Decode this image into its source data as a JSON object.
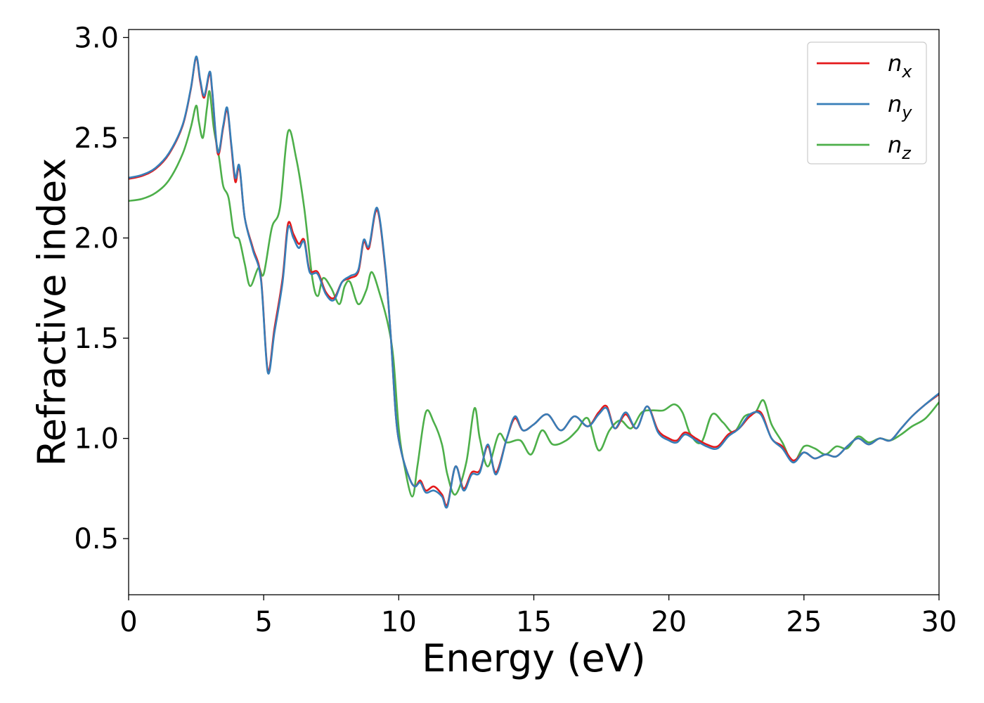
{
  "chart_data": {
    "type": "line",
    "title": "",
    "xlabel": "Energy (eV)",
    "ylabel": "Refractive index",
    "xlim": [
      0,
      30
    ],
    "ylim": [
      0.22,
      3.04
    ],
    "xticks": [
      0,
      5,
      10,
      15,
      20,
      25,
      30
    ],
    "xtick_labels": [
      "0",
      "5",
      "10",
      "15",
      "20",
      "25",
      "30"
    ],
    "yticks": [
      0.5,
      1.0,
      1.5,
      2.0,
      2.5,
      3.0
    ],
    "ytick_labels": [
      "0.5",
      "1.0",
      "1.5",
      "2.0",
      "2.5",
      "3.0"
    ],
    "grid": false,
    "legend_position": "top-right",
    "series": [
      {
        "name": "n",
        "subscript": "x",
        "color": "#e41a1c",
        "points": [
          [
            0.0,
            2.295
          ],
          [
            0.5,
            2.31
          ],
          [
            1.0,
            2.345
          ],
          [
            1.5,
            2.42
          ],
          [
            2.0,
            2.56
          ],
          [
            2.3,
            2.74
          ],
          [
            2.5,
            2.9
          ],
          [
            2.65,
            2.78
          ],
          [
            2.8,
            2.7
          ],
          [
            3.0,
            2.82
          ],
          [
            3.1,
            2.72
          ],
          [
            3.3,
            2.42
          ],
          [
            3.5,
            2.55
          ],
          [
            3.65,
            2.64
          ],
          [
            3.8,
            2.46
          ],
          [
            3.95,
            2.28
          ],
          [
            4.1,
            2.35
          ],
          [
            4.3,
            2.1
          ],
          [
            4.6,
            1.95
          ],
          [
            4.9,
            1.8
          ],
          [
            5.15,
            1.34
          ],
          [
            5.4,
            1.55
          ],
          [
            5.7,
            1.8
          ],
          [
            5.9,
            2.07
          ],
          [
            6.1,
            2.02
          ],
          [
            6.3,
            1.97
          ],
          [
            6.5,
            1.99
          ],
          [
            6.7,
            1.84
          ],
          [
            7.0,
            1.83
          ],
          [
            7.3,
            1.73
          ],
          [
            7.6,
            1.7
          ],
          [
            7.9,
            1.78
          ],
          [
            8.2,
            1.8
          ],
          [
            8.5,
            1.83
          ],
          [
            8.7,
            1.98
          ],
          [
            8.9,
            1.95
          ],
          [
            9.2,
            2.14
          ],
          [
            9.5,
            1.85
          ],
          [
            9.7,
            1.52
          ],
          [
            9.9,
            1.1
          ],
          [
            10.1,
            0.93
          ],
          [
            10.4,
            0.8
          ],
          [
            10.6,
            0.76
          ],
          [
            10.8,
            0.79
          ],
          [
            11.0,
            0.74
          ],
          [
            11.3,
            0.76
          ],
          [
            11.6,
            0.72
          ],
          [
            11.8,
            0.67
          ],
          [
            12.1,
            0.86
          ],
          [
            12.4,
            0.75
          ],
          [
            12.7,
            0.83
          ],
          [
            13.0,
            0.84
          ],
          [
            13.3,
            0.96
          ],
          [
            13.6,
            0.83
          ],
          [
            14.0,
            1.0
          ],
          [
            14.3,
            1.1
          ],
          [
            14.6,
            1.04
          ],
          [
            15.0,
            1.07
          ],
          [
            15.5,
            1.12
          ],
          [
            16.0,
            1.04
          ],
          [
            16.5,
            1.11
          ],
          [
            17.0,
            1.06
          ],
          [
            17.4,
            1.13
          ],
          [
            17.7,
            1.16
          ],
          [
            18.0,
            1.05
          ],
          [
            18.4,
            1.12
          ],
          [
            18.8,
            1.05
          ],
          [
            19.2,
            1.16
          ],
          [
            19.6,
            1.04
          ],
          [
            20.0,
            1.0
          ],
          [
            20.3,
            0.99
          ],
          [
            20.6,
            1.03
          ],
          [
            21.0,
            1.0
          ],
          [
            21.4,
            0.97
          ],
          [
            21.8,
            0.96
          ],
          [
            22.2,
            1.02
          ],
          [
            22.6,
            1.05
          ],
          [
            23.0,
            1.11
          ],
          [
            23.4,
            1.13
          ],
          [
            23.8,
            1.0
          ],
          [
            24.2,
            0.96
          ],
          [
            24.6,
            0.89
          ],
          [
            25.0,
            0.93
          ],
          [
            25.4,
            0.9
          ],
          [
            25.8,
            0.92
          ],
          [
            26.2,
            0.91
          ],
          [
            26.6,
            0.96
          ],
          [
            27.0,
            1.0
          ],
          [
            27.4,
            0.97
          ],
          [
            27.8,
            1.0
          ],
          [
            28.2,
            0.99
          ],
          [
            28.6,
            1.05
          ],
          [
            29.0,
            1.11
          ],
          [
            29.5,
            1.17
          ],
          [
            30.0,
            1.22
          ]
        ]
      },
      {
        "name": "n",
        "subscript": "y",
        "color": "#377eb8",
        "points": [
          [
            0.0,
            2.3
          ],
          [
            0.5,
            2.315
          ],
          [
            1.0,
            2.35
          ],
          [
            1.5,
            2.425
          ],
          [
            2.0,
            2.565
          ],
          [
            2.3,
            2.745
          ],
          [
            2.5,
            2.905
          ],
          [
            2.65,
            2.79
          ],
          [
            2.8,
            2.71
          ],
          [
            3.0,
            2.83
          ],
          [
            3.1,
            2.73
          ],
          [
            3.3,
            2.43
          ],
          [
            3.5,
            2.56
          ],
          [
            3.65,
            2.65
          ],
          [
            3.8,
            2.47
          ],
          [
            3.95,
            2.3
          ],
          [
            4.1,
            2.36
          ],
          [
            4.3,
            2.1
          ],
          [
            4.6,
            1.94
          ],
          [
            4.9,
            1.79
          ],
          [
            5.15,
            1.33
          ],
          [
            5.4,
            1.53
          ],
          [
            5.7,
            1.78
          ],
          [
            5.9,
            2.05
          ],
          [
            6.1,
            2.0
          ],
          [
            6.3,
            1.95
          ],
          [
            6.5,
            1.98
          ],
          [
            6.7,
            1.83
          ],
          [
            7.0,
            1.82
          ],
          [
            7.3,
            1.72
          ],
          [
            7.6,
            1.69
          ],
          [
            7.9,
            1.78
          ],
          [
            8.2,
            1.81
          ],
          [
            8.5,
            1.84
          ],
          [
            8.7,
            1.99
          ],
          [
            8.9,
            1.96
          ],
          [
            9.2,
            2.15
          ],
          [
            9.5,
            1.86
          ],
          [
            9.7,
            1.52
          ],
          [
            9.9,
            1.1
          ],
          [
            10.1,
            0.93
          ],
          [
            10.4,
            0.8
          ],
          [
            10.6,
            0.76
          ],
          [
            10.8,
            0.78
          ],
          [
            11.0,
            0.73
          ],
          [
            11.3,
            0.74
          ],
          [
            11.6,
            0.71
          ],
          [
            11.8,
            0.66
          ],
          [
            12.1,
            0.86
          ],
          [
            12.4,
            0.74
          ],
          [
            12.7,
            0.82
          ],
          [
            13.0,
            0.83
          ],
          [
            13.3,
            0.97
          ],
          [
            13.6,
            0.82
          ],
          [
            14.0,
            1.0
          ],
          [
            14.3,
            1.11
          ],
          [
            14.6,
            1.04
          ],
          [
            15.0,
            1.07
          ],
          [
            15.5,
            1.12
          ],
          [
            16.0,
            1.04
          ],
          [
            16.5,
            1.11
          ],
          [
            17.0,
            1.06
          ],
          [
            17.4,
            1.12
          ],
          [
            17.7,
            1.15
          ],
          [
            18.0,
            1.05
          ],
          [
            18.4,
            1.13
          ],
          [
            18.8,
            1.05
          ],
          [
            19.2,
            1.16
          ],
          [
            19.6,
            1.03
          ],
          [
            20.0,
            0.99
          ],
          [
            20.3,
            0.98
          ],
          [
            20.6,
            1.02
          ],
          [
            21.0,
            0.99
          ],
          [
            21.4,
            0.96
          ],
          [
            21.8,
            0.95
          ],
          [
            22.2,
            1.01
          ],
          [
            22.6,
            1.05
          ],
          [
            23.0,
            1.12
          ],
          [
            23.4,
            1.12
          ],
          [
            23.8,
            1.0
          ],
          [
            24.2,
            0.95
          ],
          [
            24.6,
            0.88
          ],
          [
            25.0,
            0.93
          ],
          [
            25.4,
            0.9
          ],
          [
            25.8,
            0.92
          ],
          [
            26.2,
            0.91
          ],
          [
            26.6,
            0.96
          ],
          [
            27.0,
            1.0
          ],
          [
            27.4,
            0.97
          ],
          [
            27.8,
            1.0
          ],
          [
            28.2,
            0.99
          ],
          [
            28.6,
            1.05
          ],
          [
            29.0,
            1.11
          ],
          [
            29.5,
            1.17
          ],
          [
            30.0,
            1.225
          ]
        ]
      },
      {
        "name": "n",
        "subscript": "z",
        "color": "#4daf4a",
        "points": [
          [
            0.0,
            2.185
          ],
          [
            0.5,
            2.195
          ],
          [
            1.0,
            2.225
          ],
          [
            1.5,
            2.29
          ],
          [
            2.0,
            2.42
          ],
          [
            2.3,
            2.55
          ],
          [
            2.5,
            2.66
          ],
          [
            2.6,
            2.58
          ],
          [
            2.75,
            2.5
          ],
          [
            2.9,
            2.65
          ],
          [
            3.0,
            2.73
          ],
          [
            3.15,
            2.55
          ],
          [
            3.35,
            2.4
          ],
          [
            3.5,
            2.26
          ],
          [
            3.7,
            2.2
          ],
          [
            3.9,
            2.02
          ],
          [
            4.1,
            1.99
          ],
          [
            4.3,
            1.87
          ],
          [
            4.5,
            1.76
          ],
          [
            4.8,
            1.85
          ],
          [
            5.0,
            1.82
          ],
          [
            5.3,
            2.05
          ],
          [
            5.6,
            2.15
          ],
          [
            5.9,
            2.53
          ],
          [
            6.2,
            2.4
          ],
          [
            6.5,
            2.15
          ],
          [
            6.8,
            1.8
          ],
          [
            7.0,
            1.71
          ],
          [
            7.2,
            1.8
          ],
          [
            7.5,
            1.75
          ],
          [
            7.8,
            1.67
          ],
          [
            8.0,
            1.76
          ],
          [
            8.2,
            1.78
          ],
          [
            8.5,
            1.67
          ],
          [
            8.8,
            1.74
          ],
          [
            9.0,
            1.83
          ],
          [
            9.3,
            1.72
          ],
          [
            9.6,
            1.57
          ],
          [
            9.8,
            1.4
          ],
          [
            10.0,
            1.05
          ],
          [
            10.2,
            0.87
          ],
          [
            10.5,
            0.71
          ],
          [
            10.7,
            0.87
          ],
          [
            11.0,
            1.13
          ],
          [
            11.3,
            1.08
          ],
          [
            11.6,
            0.97
          ],
          [
            11.8,
            0.82
          ],
          [
            12.1,
            0.72
          ],
          [
            12.5,
            0.88
          ],
          [
            12.8,
            1.15
          ],
          [
            13.0,
            1.0
          ],
          [
            13.3,
            0.86
          ],
          [
            13.7,
            1.02
          ],
          [
            14.0,
            0.98
          ],
          [
            14.5,
            0.99
          ],
          [
            14.9,
            0.92
          ],
          [
            15.3,
            1.04
          ],
          [
            15.7,
            0.97
          ],
          [
            16.2,
            0.99
          ],
          [
            16.6,
            1.04
          ],
          [
            17.0,
            1.1
          ],
          [
            17.4,
            0.94
          ],
          [
            17.8,
            1.04
          ],
          [
            18.2,
            1.09
          ],
          [
            18.6,
            1.05
          ],
          [
            19.0,
            1.13
          ],
          [
            19.4,
            1.14
          ],
          [
            19.8,
            1.14
          ],
          [
            20.2,
            1.17
          ],
          [
            20.5,
            1.13
          ],
          [
            20.8,
            1.02
          ],
          [
            21.2,
            0.98
          ],
          [
            21.6,
            1.12
          ],
          [
            22.0,
            1.08
          ],
          [
            22.4,
            1.03
          ],
          [
            22.8,
            1.11
          ],
          [
            23.2,
            1.13
          ],
          [
            23.5,
            1.19
          ],
          [
            23.8,
            1.07
          ],
          [
            24.2,
            0.98
          ],
          [
            24.6,
            0.88
          ],
          [
            25.0,
            0.96
          ],
          [
            25.4,
            0.95
          ],
          [
            25.8,
            0.92
          ],
          [
            26.2,
            0.96
          ],
          [
            26.6,
            0.95
          ],
          [
            27.0,
            1.01
          ],
          [
            27.4,
            0.98
          ],
          [
            27.8,
            1.0
          ],
          [
            28.2,
            0.99
          ],
          [
            28.6,
            1.02
          ],
          [
            29.0,
            1.06
          ],
          [
            29.5,
            1.1
          ],
          [
            30.0,
            1.18
          ]
        ]
      }
    ]
  }
}
